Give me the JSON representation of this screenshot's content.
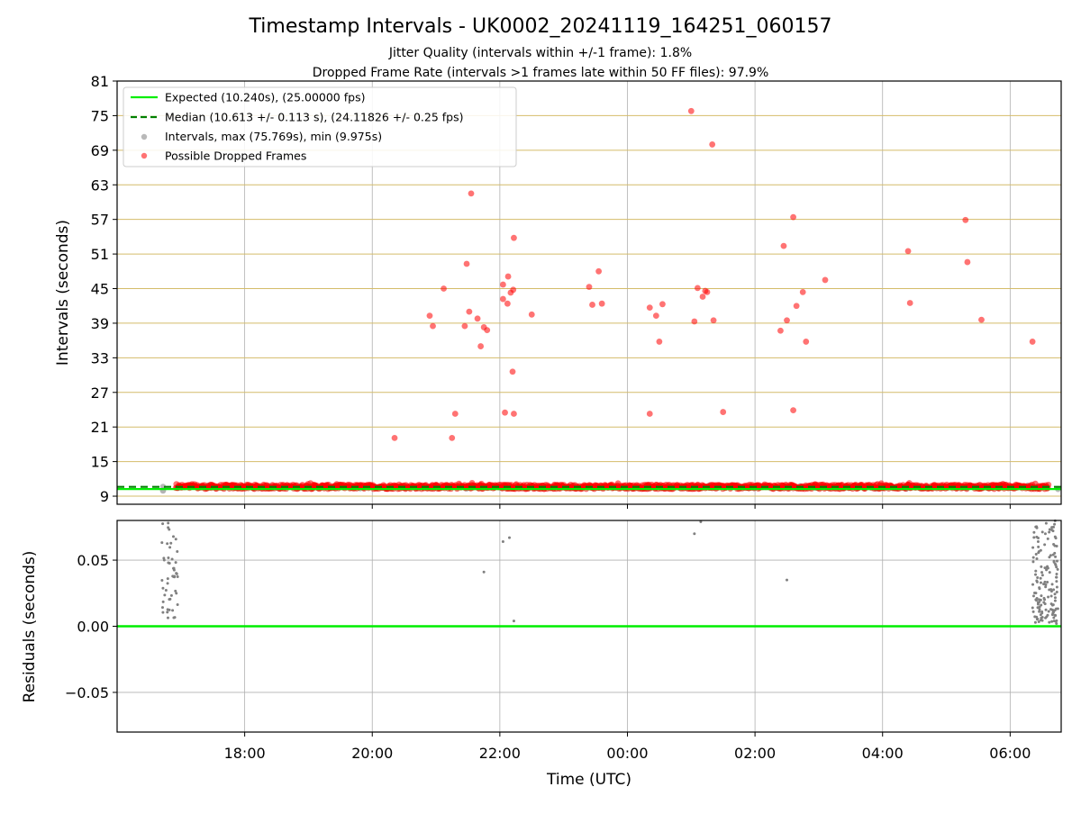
{
  "colors": {
    "expected": "#00ee00",
    "median": "#008000",
    "intervals": "#808080",
    "dropped": "#ff0000",
    "grid": "#b0b0b0",
    "frame_grid": "#d4bc6a"
  },
  "chart_data": [
    {
      "type": "scatter",
      "title": "Timestamp Intervals - UK0002_20241119_164251_060157",
      "subtitle_lines": [
        "Jitter Quality (intervals within +/-1 frame): 1.8%",
        "Dropped Frame Rate (intervals >1 frames late within 50 FF files): 97.9%"
      ],
      "xlabel": "",
      "ylabel": "Intervals (seconds)",
      "ylim": [
        7.6,
        81
      ],
      "yticks": [
        9,
        15,
        21,
        27,
        33,
        39,
        45,
        51,
        57,
        63,
        69,
        75,
        81
      ],
      "xlim": [
        16.0,
        30.8
      ],
      "xticks": [
        18,
        20,
        22,
        24,
        26,
        28,
        30
      ],
      "xticklabels": [
        "18:00",
        "20:00",
        "22:00",
        "00:00",
        "02:00",
        "04:00",
        "06:00"
      ],
      "x_units": "hours since 00:00 UTC on 2024-11-19",
      "expected_value": 10.24,
      "median_value": 10.613,
      "legend": {
        "placement": "upper-left",
        "entries": [
          "Expected (10.240s), (25.00000 fps)",
          "Median (10.613 +/- 0.113 s), (24.11826 +/- 0.25 fps)",
          "Intervals, max (75.769s), min (9.975s)",
          "Possible Dropped Frames"
        ]
      },
      "baseline_range": [
        16.72,
        30.75
      ],
      "baseline_values_range": [
        9.975,
        11.3
      ],
      "dropped_frames": [
        [
          20.35,
          19.1
        ],
        [
          20.9,
          40.3
        ],
        [
          20.95,
          38.5
        ],
        [
          21.12,
          45.0
        ],
        [
          21.25,
          19.1
        ],
        [
          21.3,
          23.3
        ],
        [
          21.45,
          38.5
        ],
        [
          21.48,
          49.3
        ],
        [
          21.52,
          41.0
        ],
        [
          21.55,
          61.5
        ],
        [
          21.65,
          39.8
        ],
        [
          21.7,
          35.0
        ],
        [
          21.75,
          38.3
        ],
        [
          21.8,
          37.8
        ],
        [
          22.05,
          45.7
        ],
        [
          22.05,
          43.2
        ],
        [
          22.08,
          23.5
        ],
        [
          22.12,
          42.4
        ],
        [
          22.13,
          47.1
        ],
        [
          22.17,
          44.3
        ],
        [
          22.2,
          30.6
        ],
        [
          22.21,
          44.8
        ],
        [
          22.22,
          53.8
        ],
        [
          22.22,
          23.3
        ],
        [
          22.5,
          40.5
        ],
        [
          23.4,
          45.3
        ],
        [
          23.45,
          42.2
        ],
        [
          23.55,
          48.0
        ],
        [
          23.6,
          42.4
        ],
        [
          24.35,
          41.7
        ],
        [
          24.35,
          23.3
        ],
        [
          24.45,
          40.3
        ],
        [
          24.5,
          35.8
        ],
        [
          24.55,
          42.3
        ],
        [
          25.0,
          75.8
        ],
        [
          25.05,
          39.3
        ],
        [
          25.1,
          45.1
        ],
        [
          25.18,
          43.6
        ],
        [
          25.22,
          44.6
        ],
        [
          25.25,
          44.4
        ],
        [
          25.33,
          70.0
        ],
        [
          25.35,
          39.5
        ],
        [
          25.5,
          23.6
        ],
        [
          26.4,
          37.7
        ],
        [
          26.45,
          52.4
        ],
        [
          26.5,
          39.5
        ],
        [
          26.6,
          57.4
        ],
        [
          26.6,
          23.9
        ],
        [
          26.65,
          42.0
        ],
        [
          26.75,
          44.4
        ],
        [
          26.8,
          35.8
        ],
        [
          27.1,
          46.5
        ],
        [
          28.4,
          51.5
        ],
        [
          28.43,
          42.5
        ],
        [
          29.3,
          56.9
        ],
        [
          29.33,
          49.6
        ],
        [
          29.55,
          39.6
        ],
        [
          30.35,
          35.8
        ]
      ]
    },
    {
      "type": "scatter",
      "title": "",
      "xlabel": "Time (UTC)",
      "ylabel": "Residuals (seconds)",
      "ylim": [
        -0.08,
        0.08
      ],
      "yticks": [
        -0.05,
        0.0,
        0.05
      ],
      "yticklabels": [
        "−0.05",
        "0.00",
        "0.05"
      ],
      "xlim": [
        16.0,
        30.8
      ],
      "xticks": [
        18,
        20,
        22,
        24,
        26,
        28,
        30
      ],
      "xticklabels": [
        "18:00",
        "20:00",
        "22:00",
        "00:00",
        "02:00",
        "04:00",
        "06:00"
      ],
      "zero_line": 0.0,
      "residual_clusters": [
        {
          "x_range": [
            16.7,
            16.95
          ],
          "y_range": [
            0.002,
            0.08
          ],
          "count": 50
        },
        {
          "x_range": [
            30.35,
            30.75
          ],
          "y_range": [
            0.002,
            0.08
          ],
          "count": 150
        }
      ],
      "residual_points": [
        [
          21.75,
          0.041
        ],
        [
          22.05,
          0.064
        ],
        [
          22.15,
          0.067
        ],
        [
          22.22,
          0.004
        ],
        [
          25.05,
          0.07
        ],
        [
          25.15,
          0.079
        ],
        [
          26.5,
          0.035
        ]
      ]
    }
  ]
}
